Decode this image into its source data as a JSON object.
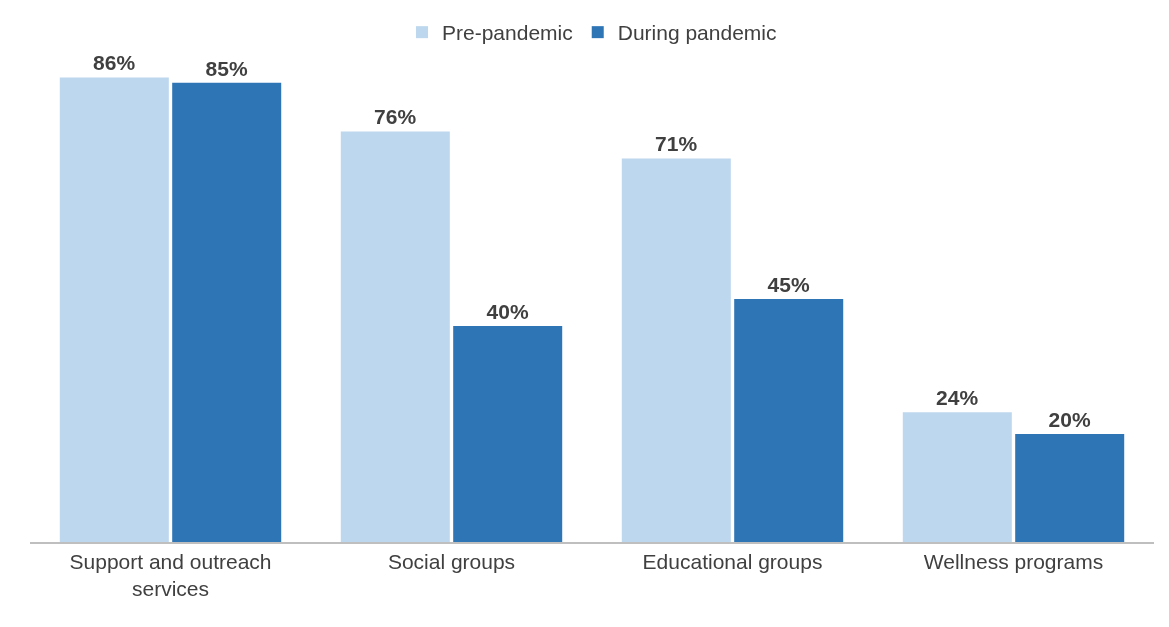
{
  "chart_data": {
    "type": "bar",
    "categories": [
      "Support and outreach services",
      "Social groups",
      "Educational groups",
      "Wellness programs"
    ],
    "series": [
      {
        "name": "Pre-pandemic",
        "color": "#bdd7ee",
        "values": [
          86,
          76,
          71,
          24
        ],
        "value_labels": [
          "86%",
          "76%",
          "71%",
          "24%"
        ]
      },
      {
        "name": "During pandemic",
        "color": "#2e75b6",
        "values": [
          85,
          40,
          45,
          20
        ],
        "value_labels": [
          "85%",
          "40%",
          "45%",
          "20%"
        ]
      }
    ],
    "tick_labels": "x",
    "legend": "top"
  }
}
